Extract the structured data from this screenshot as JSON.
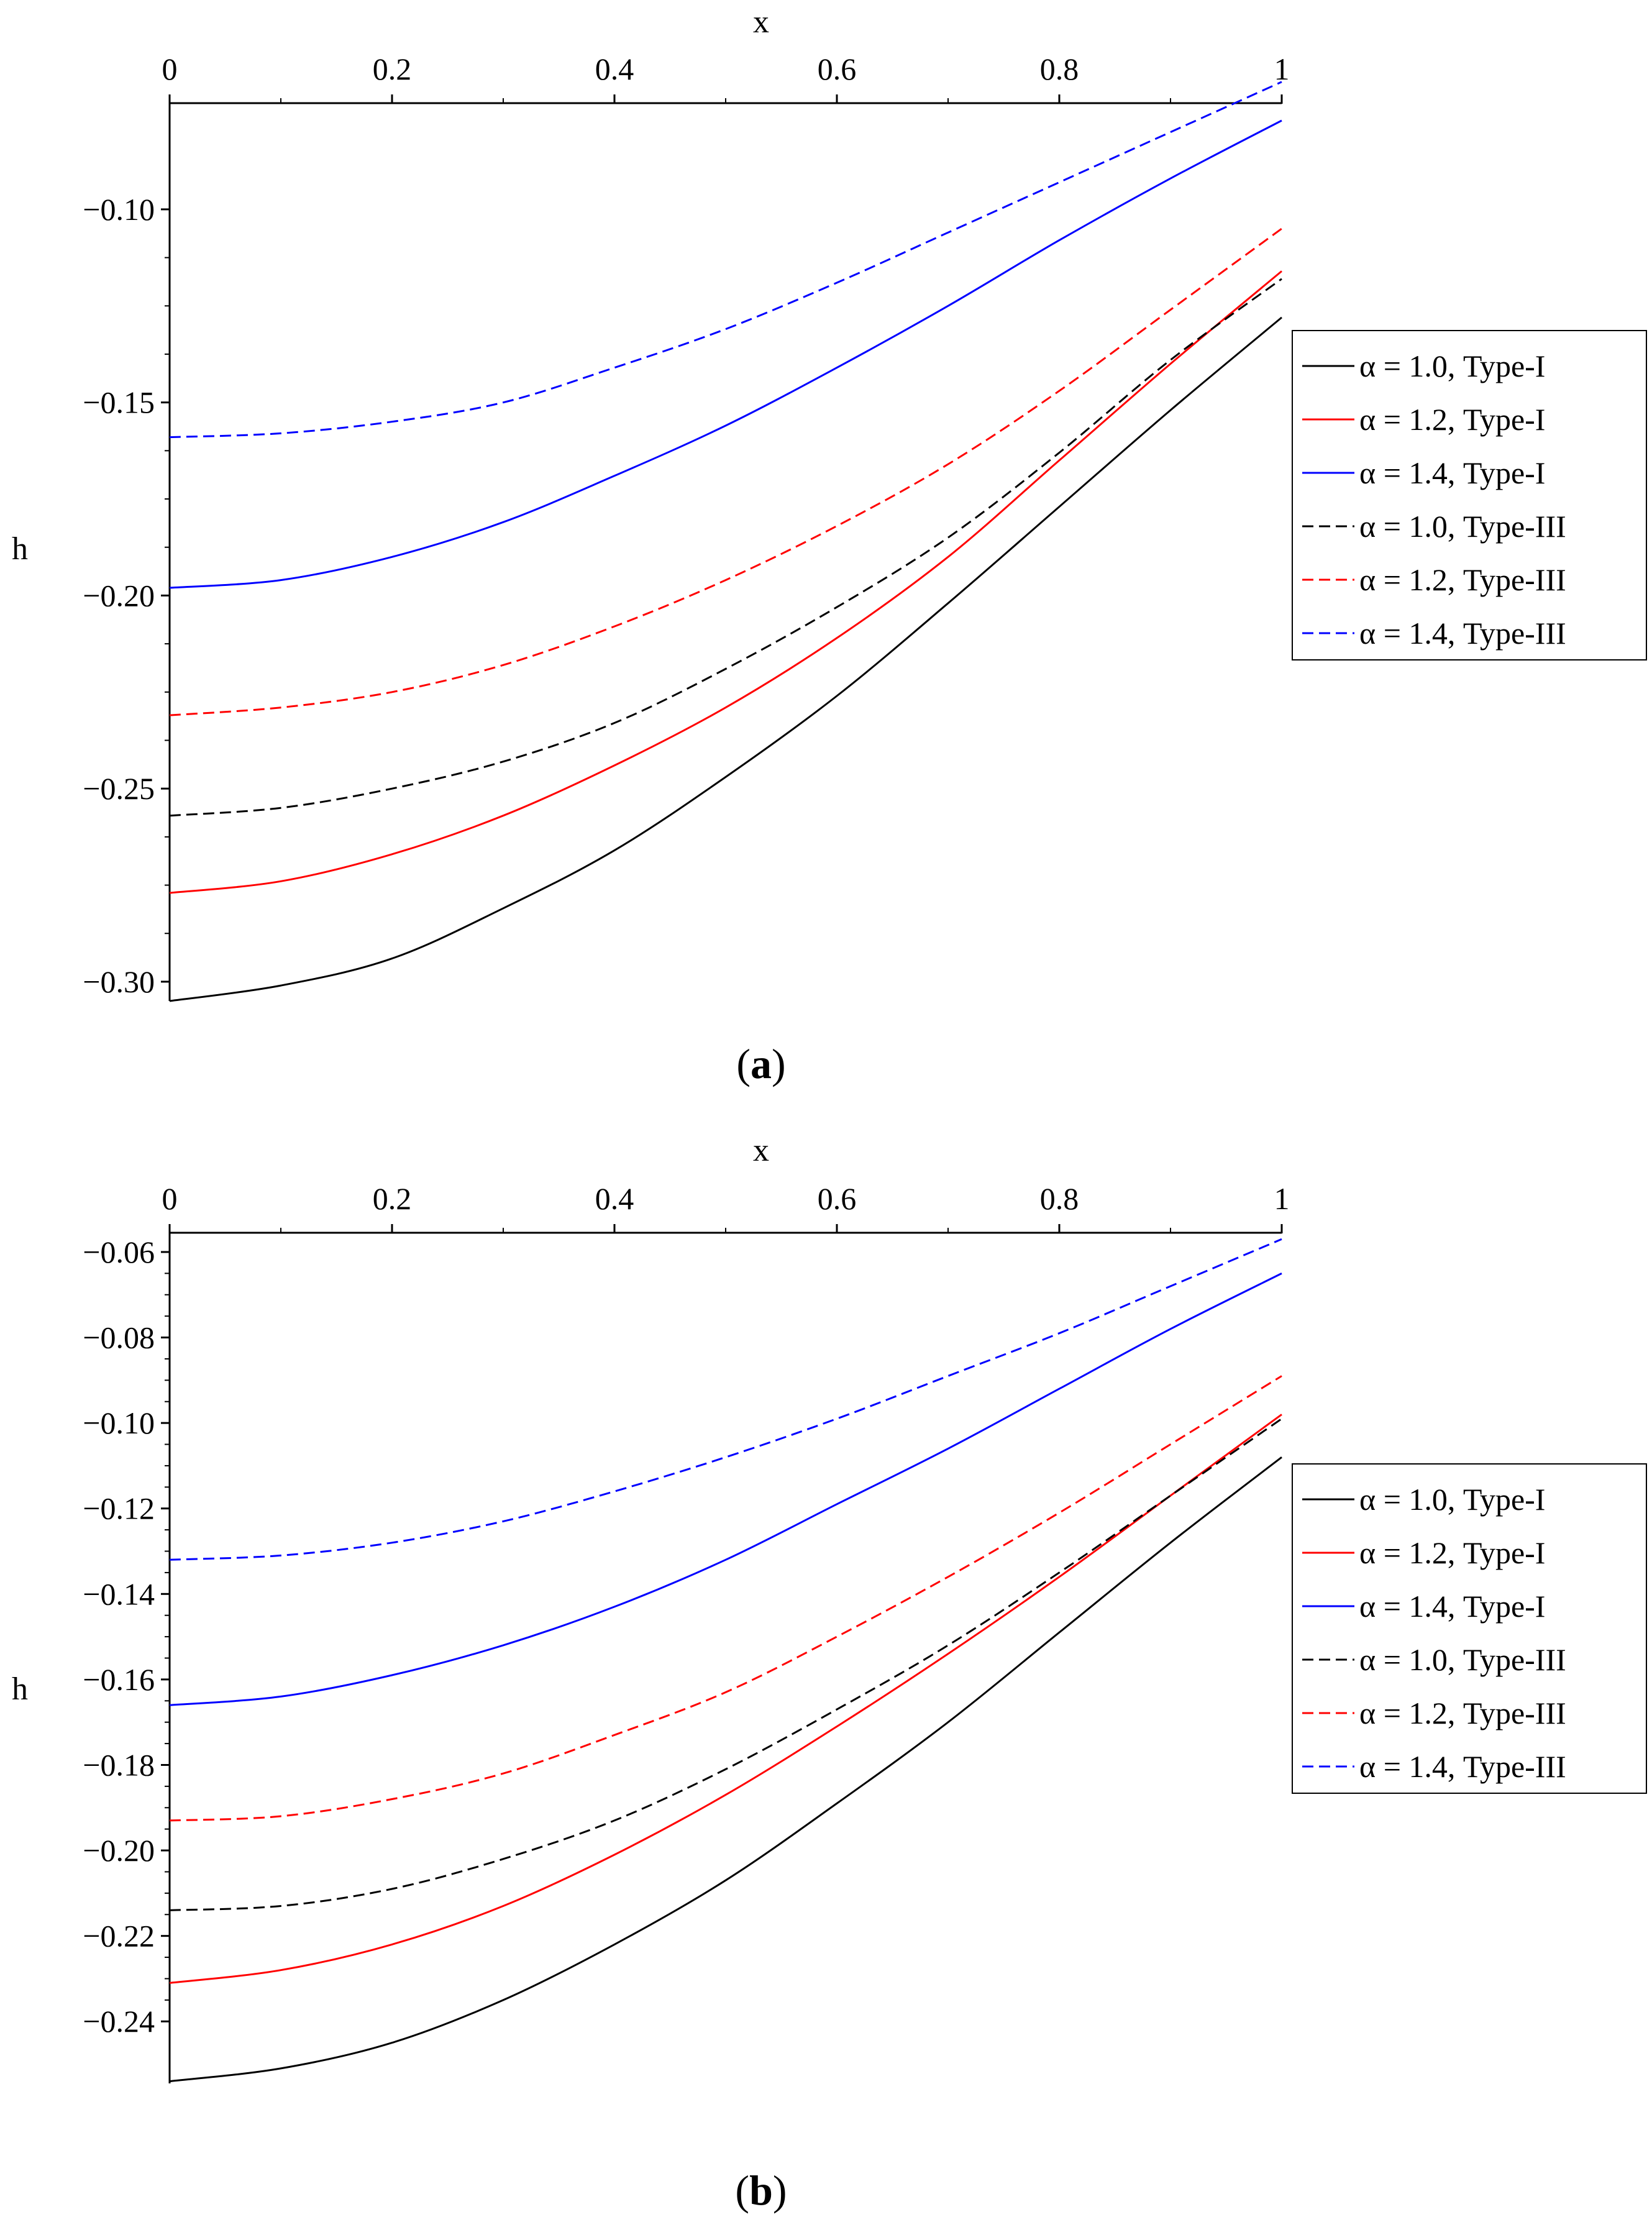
{
  "colors": {
    "black": "#000000",
    "red": "#ff0000",
    "blue": "#0000ff"
  },
  "chart_data": [
    {
      "type": "line",
      "panel_label": "(a)",
      "panel_label_letter": "a",
      "xlabel": "x",
      "ylabel": "h",
      "xlim": [
        0,
        1
      ],
      "ylim": [
        -0.305,
        -0.0725
      ],
      "xticks": [
        0,
        0.2,
        0.4,
        0.6,
        0.8,
        1
      ],
      "xtick_labels": [
        "0",
        "0.2",
        "0.4",
        "0.6",
        "0.8",
        "1"
      ],
      "yticks": [
        -0.3,
        -0.25,
        -0.2,
        -0.15,
        -0.1
      ],
      "ytick_labels": [
        "−0.30",
        "−0.25",
        "−0.20",
        "−0.15",
        "−0.10"
      ],
      "x": [
        0,
        0.1,
        0.2,
        0.3,
        0.4,
        0.5,
        0.6,
        0.7,
        0.8,
        0.9,
        1.0
      ],
      "series": [
        {
          "name": "α = 1.0, Type-I",
          "color": "#000000",
          "dash": "solid",
          "values": [
            -0.305,
            -0.301,
            -0.294,
            -0.281,
            -0.266,
            -0.247,
            -0.226,
            -0.202,
            -0.177,
            -0.152,
            -0.128
          ]
        },
        {
          "name": "α = 1.2, Type-I",
          "color": "#ff0000",
          "dash": "solid",
          "values": [
            -0.277,
            -0.274,
            -0.267,
            -0.257,
            -0.244,
            -0.229,
            -0.211,
            -0.19,
            -0.165,
            -0.14,
            -0.116
          ]
        },
        {
          "name": "α = 1.4, Type-I",
          "color": "#0000ff",
          "dash": "solid",
          "values": [
            -0.198,
            -0.196,
            -0.19,
            -0.181,
            -0.169,
            -0.156,
            -0.141,
            -0.125,
            -0.108,
            -0.092,
            -0.077
          ]
        },
        {
          "name": "α = 1.0, Type-III",
          "color": "#000000",
          "dash": "dashed",
          "values": [
            -0.257,
            -0.255,
            -0.25,
            -0.243,
            -0.233,
            -0.219,
            -0.203,
            -0.185,
            -0.163,
            -0.139,
            -0.118
          ]
        },
        {
          "name": "α = 1.2, Type-III",
          "color": "#ff0000",
          "dash": "dashed",
          "values": [
            -0.231,
            -0.229,
            -0.225,
            -0.218,
            -0.208,
            -0.196,
            -0.182,
            -0.166,
            -0.147,
            -0.126,
            -0.105
          ]
        },
        {
          "name": "α = 1.4, Type-III",
          "color": "#0000ff",
          "dash": "dashed",
          "values": [
            -0.159,
            -0.158,
            -0.155,
            -0.15,
            -0.141,
            -0.131,
            -0.119,
            -0.106,
            -0.093,
            -0.08,
            -0.067
          ]
        }
      ]
    },
    {
      "type": "line",
      "panel_label": "(b)",
      "panel_label_letter": "b",
      "xlabel": "x",
      "ylabel": "h",
      "xlim": [
        0,
        1
      ],
      "ylim": [
        -0.2545,
        -0.0555
      ],
      "xticks": [
        0,
        0.2,
        0.4,
        0.6,
        0.8,
        1
      ],
      "xtick_labels": [
        "0",
        "0.2",
        "0.4",
        "0.6",
        "0.8",
        "1"
      ],
      "yticks": [
        -0.24,
        -0.22,
        -0.2,
        -0.18,
        -0.16,
        -0.14,
        -0.12,
        -0.1,
        -0.08,
        -0.06
      ],
      "ytick_labels": [
        "−0.24",
        "−0.22",
        "−0.20",
        "−0.18",
        "−0.16",
        "−0.14",
        "−0.12",
        "−0.10",
        "−0.08",
        "−0.06"
      ],
      "x": [
        0,
        0.1,
        0.2,
        0.3,
        0.4,
        0.5,
        0.6,
        0.7,
        0.8,
        0.9,
        1.0
      ],
      "series": [
        {
          "name": "α = 1.0, Type-I",
          "color": "#000000",
          "dash": "solid",
          "values": [
            -0.254,
            -0.251,
            -0.245,
            -0.235,
            -0.222,
            -0.207,
            -0.189,
            -0.17,
            -0.149,
            -0.128,
            -0.108
          ]
        },
        {
          "name": "α = 1.2, Type-I",
          "color": "#ff0000",
          "dash": "solid",
          "values": [
            -0.231,
            -0.228,
            -0.222,
            -0.213,
            -0.201,
            -0.187,
            -0.171,
            -0.154,
            -0.136,
            -0.117,
            -0.098
          ]
        },
        {
          "name": "α = 1.4, Type-I",
          "color": "#0000ff",
          "dash": "solid",
          "values": [
            -0.166,
            -0.164,
            -0.159,
            -0.152,
            -0.143,
            -0.132,
            -0.119,
            -0.106,
            -0.092,
            -0.078,
            -0.065
          ]
        },
        {
          "name": "α = 1.0, Type-III",
          "color": "#000000",
          "dash": "dashed",
          "values": [
            -0.214,
            -0.213,
            -0.209,
            -0.202,
            -0.193,
            -0.181,
            -0.167,
            -0.152,
            -0.135,
            -0.117,
            -0.099
          ]
        },
        {
          "name": "α = 1.2, Type-III",
          "color": "#ff0000",
          "dash": "dashed",
          "values": [
            -0.193,
            -0.192,
            -0.188,
            -0.182,
            -0.173,
            -0.163,
            -0.15,
            -0.136,
            -0.121,
            -0.105,
            -0.089
          ]
        },
        {
          "name": "α = 1.4, Type-III",
          "color": "#0000ff",
          "dash": "dashed",
          "values": [
            -0.132,
            -0.131,
            -0.128,
            -0.123,
            -0.116,
            -0.108,
            -0.099,
            -0.089,
            -0.079,
            -0.068,
            -0.057
          ]
        }
      ]
    }
  ]
}
